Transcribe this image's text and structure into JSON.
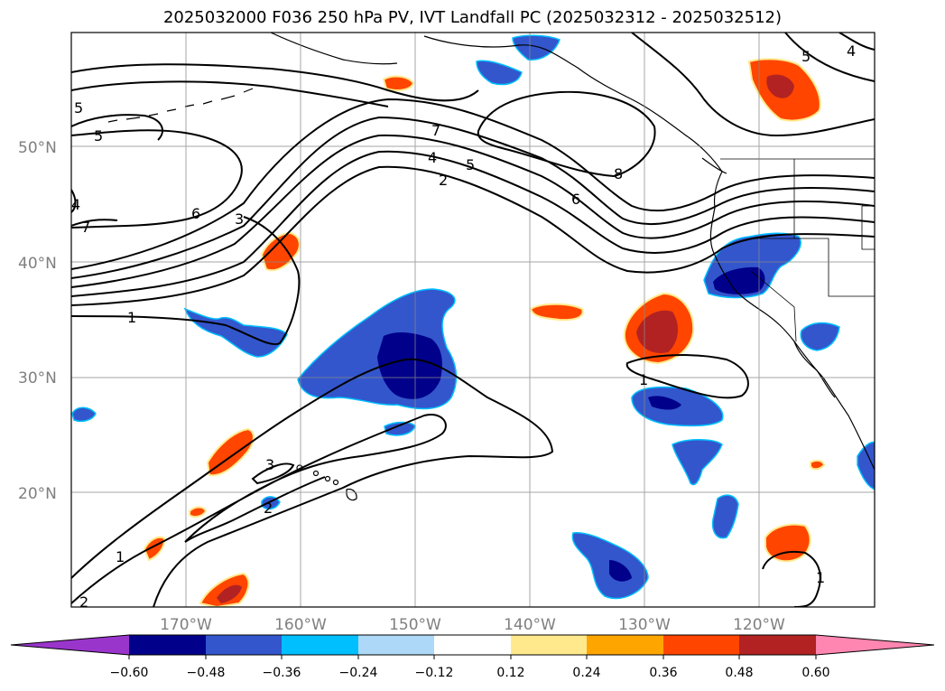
{
  "title": "2025032000 F036 250 hPa PV, IVT Landfall PC (2025032312 - 2025032512)",
  "latitude_labels": [
    "50°N",
    "40°N",
    "30°N",
    "20°N"
  ],
  "longitude_labels": [
    "170°W",
    "160°W",
    "150°W",
    "140°W",
    "130°W",
    "120°W"
  ],
  "colorbar": {
    "tick_labels": [
      "−0.60",
      "−0.48",
      "−0.36",
      "−0.24",
      "−0.12",
      "0.12",
      "0.24",
      "0.36",
      "0.48",
      "0.60"
    ],
    "colors": [
      "#9a35cc",
      "#00008b",
      "#3356cc",
      "#00bfff",
      "#add8f7",
      "#ffffff",
      "#ffe98c",
      "#ffa500",
      "#ff4500",
      "#b22222",
      "#ff86b0"
    ]
  },
  "contour_labels": [
    "5",
    "5",
    "7",
    "6",
    "3",
    "1",
    "7",
    "5",
    "4",
    "2",
    "6",
    "8",
    "5",
    "4",
    "1",
    "3",
    "2",
    "1",
    "2",
    "1",
    "4"
  ]
}
